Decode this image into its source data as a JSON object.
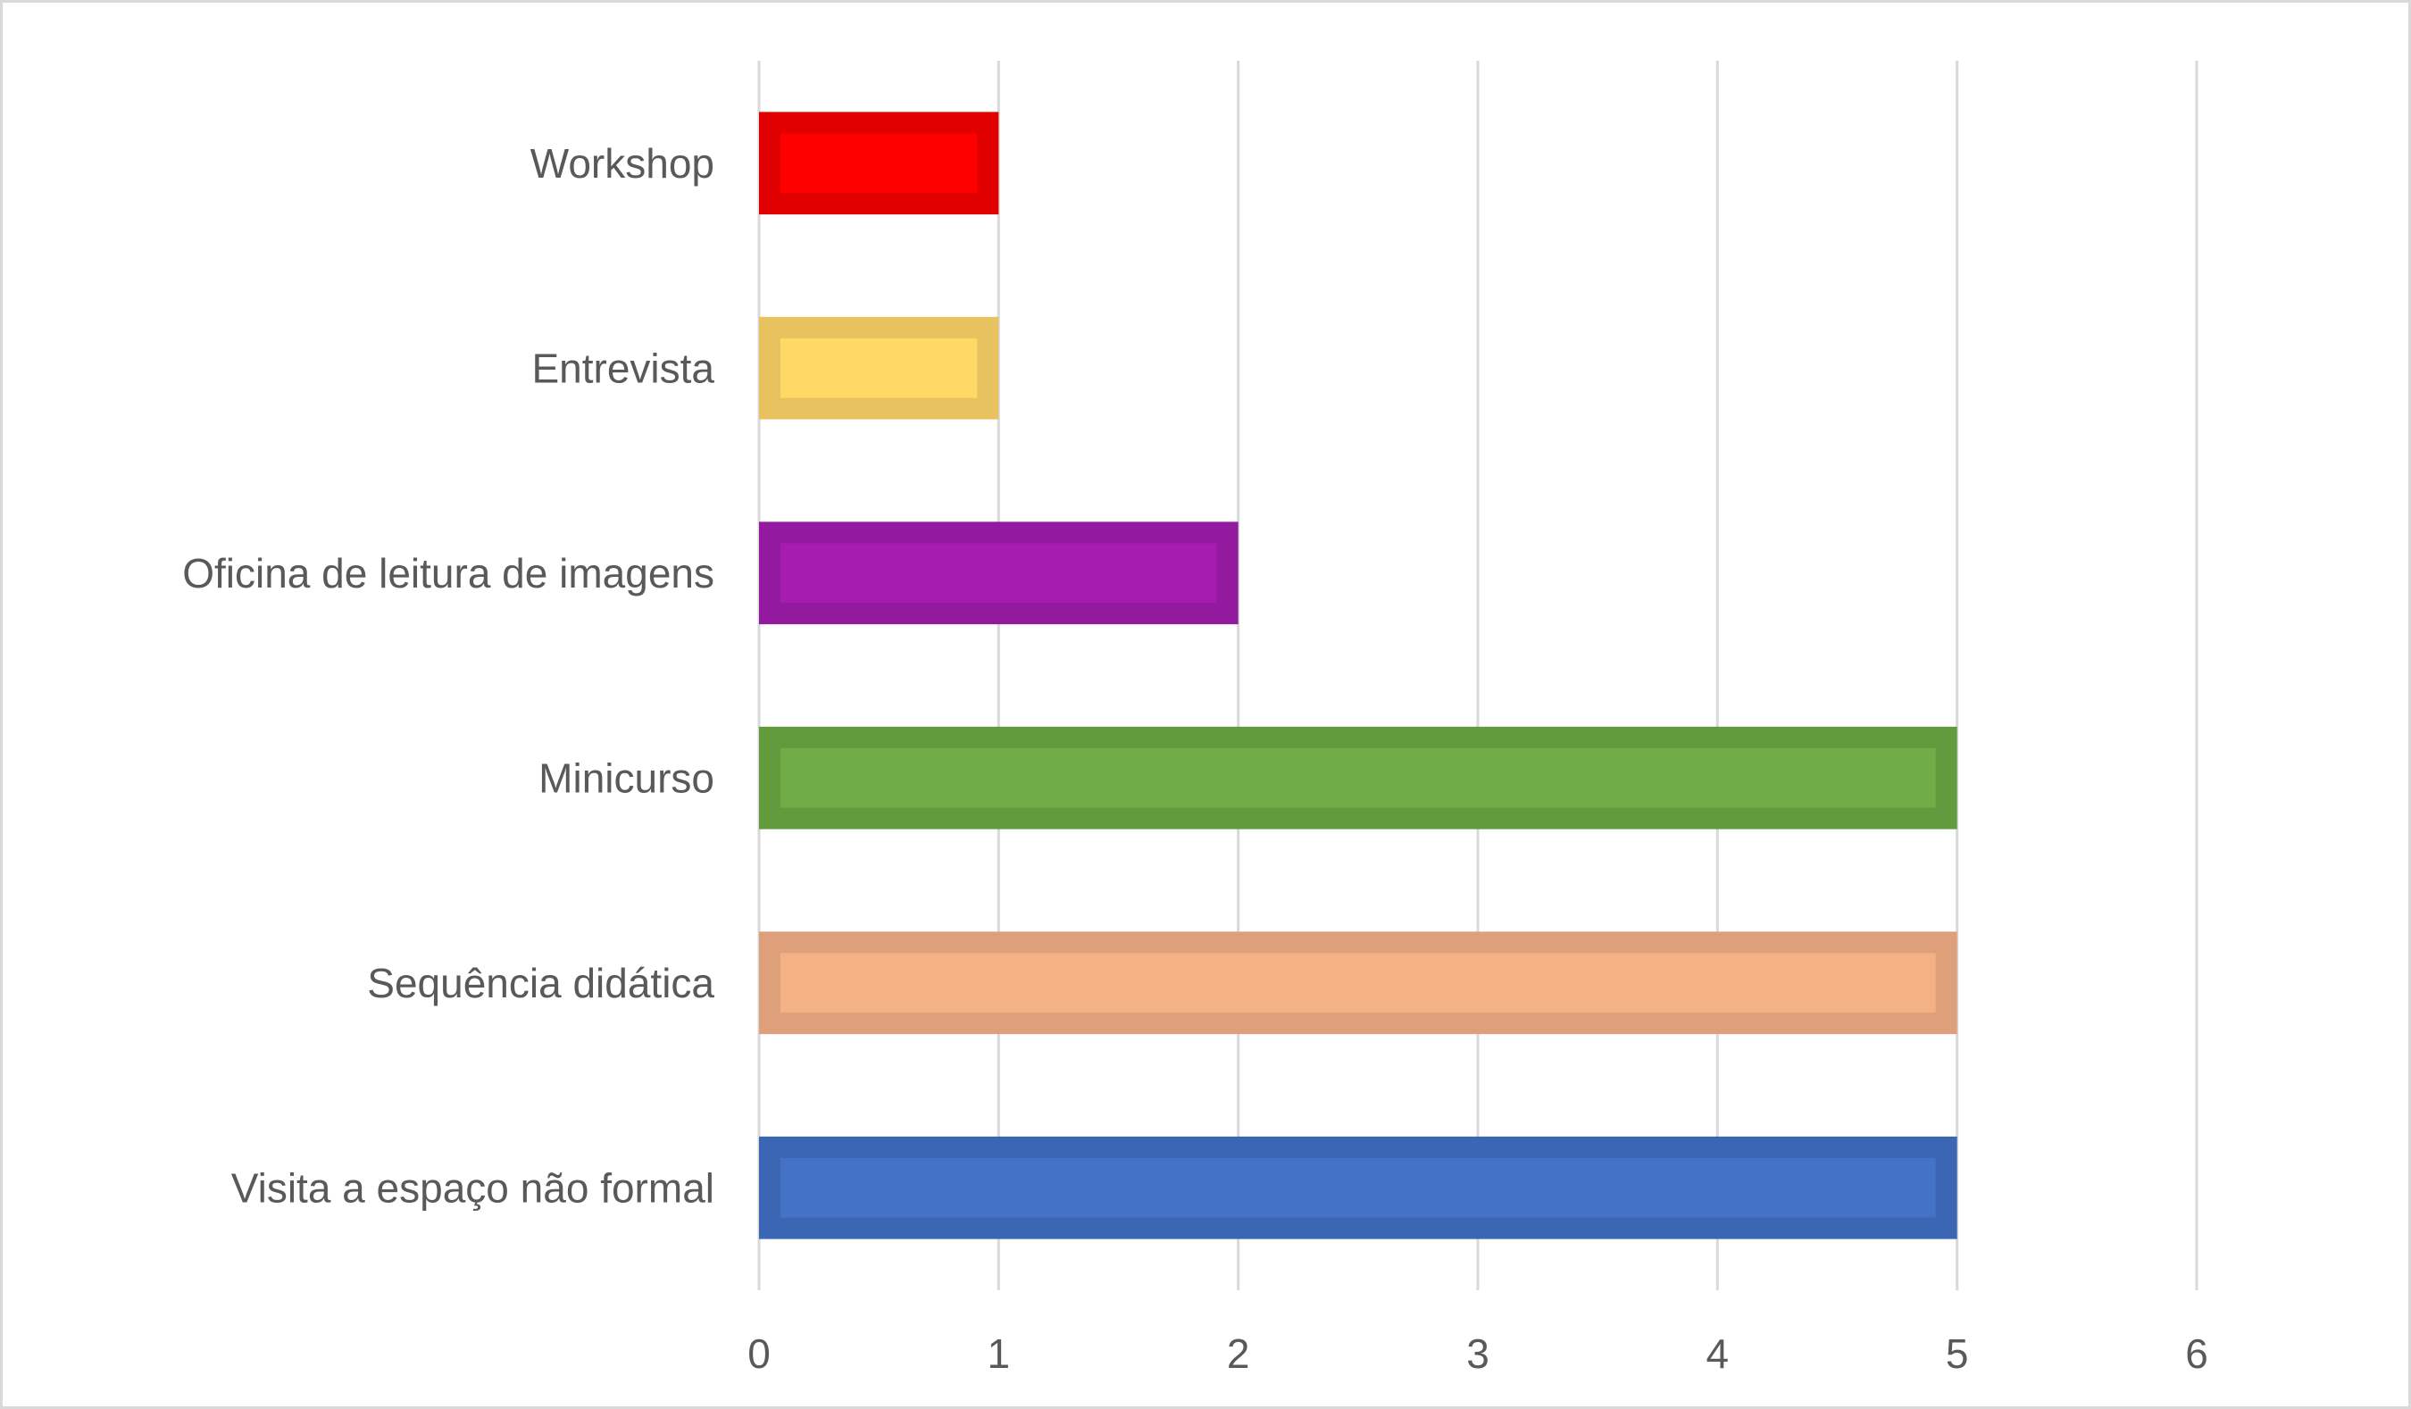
{
  "chart_data": {
    "type": "bar",
    "orientation": "horizontal",
    "title": "",
    "xlabel": "",
    "ylabel": "",
    "categories": [
      "Workshop",
      "Entrevista",
      "Oficina de leitura de imagens",
      "Minicurso",
      "Sequência didática",
      "Visita a espaço não formal"
    ],
    "values": [
      1,
      1,
      2,
      5,
      5,
      5
    ],
    "colors": [
      "#FF0000",
      "#FFD966",
      "#A61CB0",
      "#70AD47",
      "#F4B183",
      "#4472C4"
    ],
    "border_colors": [
      "#E00000",
      "#E8C25E",
      "#921A9E",
      "#629A3E",
      "#DDA07A",
      "#3B66B3"
    ],
    "xlim": [
      0,
      6
    ],
    "xticks": [
      "0",
      "1",
      "2",
      "3",
      "4",
      "5",
      "6"
    ],
    "grid": true,
    "legend": "none"
  }
}
